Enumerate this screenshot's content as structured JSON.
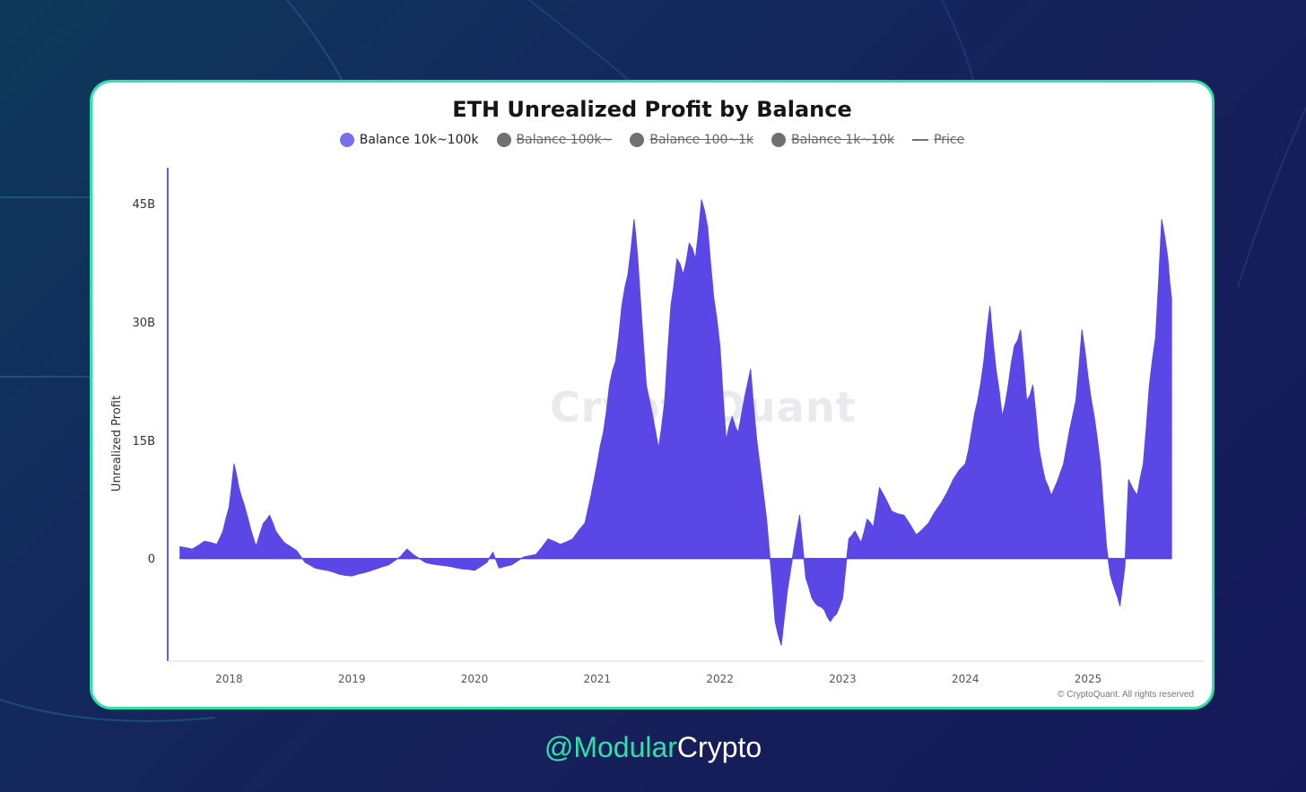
{
  "footer": {
    "handle": "@Modular",
    "brand": "Crypto"
  },
  "watermark": "CryptoQuant",
  "copyright": "© CryptoQuant. All rights reserved",
  "colors": {
    "accent": "#2fe0a8",
    "series": "#5b47e6",
    "disabled": "#6f6f74"
  },
  "chart_data": {
    "type": "area",
    "title": "ETH Unrealized Profit by Balance",
    "ylabel": "Unrealized Profit",
    "xlabel": "",
    "legend_position": "top-center",
    "grid": false,
    "legend": [
      {
        "label": "Balance 10k~100k",
        "marker": "dot",
        "color": "#7b6cf0",
        "active": true
      },
      {
        "label": "Balance 100k~",
        "marker": "dot",
        "color": "#6f6f74",
        "active": false
      },
      {
        "label": "Balance 100~1k",
        "marker": "dot",
        "color": "#6f6f74",
        "active": false
      },
      {
        "label": "Balance 1k~10k",
        "marker": "dot",
        "color": "#6f6f74",
        "active": false
      },
      {
        "label": "Price",
        "marker": "line",
        "color": "#6f6f74",
        "active": false
      }
    ],
    "x_ticks": [
      "2018",
      "2019",
      "2020",
      "2021",
      "2022",
      "2023",
      "2024",
      "2025"
    ],
    "y_ticks": [
      {
        "value": 45,
        "label": "45B"
      },
      {
        "value": 30,
        "label": "30B"
      },
      {
        "value": 15,
        "label": "15B"
      },
      {
        "value": 0,
        "label": "0"
      }
    ],
    "xlim": [
      2017.5,
      2025.95
    ],
    "ylim": [
      -13,
      49
    ],
    "series": [
      {
        "name": "Balance 10k~100k",
        "unit": "B USD",
        "points": [
          [
            2017.6,
            1.5
          ],
          [
            2017.7,
            1.2
          ],
          [
            2017.8,
            2.2
          ],
          [
            2017.9,
            1.8
          ],
          [
            2017.95,
            3.5
          ],
          [
            2018.0,
            6.5
          ],
          [
            2018.04,
            12.0
          ],
          [
            2018.08,
            9.0
          ],
          [
            2018.12,
            7.0
          ],
          [
            2018.18,
            3.5
          ],
          [
            2018.22,
            1.5
          ],
          [
            2018.28,
            4.5
          ],
          [
            2018.33,
            5.5
          ],
          [
            2018.38,
            3.5
          ],
          [
            2018.45,
            2.0
          ],
          [
            2018.55,
            1.0
          ],
          [
            2018.62,
            -0.5
          ],
          [
            2018.7,
            -1.2
          ],
          [
            2018.8,
            -1.5
          ],
          [
            2018.9,
            -2.0
          ],
          [
            2019.0,
            -2.2
          ],
          [
            2019.1,
            -1.8
          ],
          [
            2019.2,
            -1.3
          ],
          [
            2019.3,
            -0.8
          ],
          [
            2019.4,
            0.3
          ],
          [
            2019.45,
            1.2
          ],
          [
            2019.5,
            0.5
          ],
          [
            2019.6,
            -0.5
          ],
          [
            2019.7,
            -0.8
          ],
          [
            2019.8,
            -1.0
          ],
          [
            2019.9,
            -1.3
          ],
          [
            2020.0,
            -1.5
          ],
          [
            2020.1,
            -0.5
          ],
          [
            2020.15,
            0.8
          ],
          [
            2020.2,
            -1.2
          ],
          [
            2020.3,
            -0.8
          ],
          [
            2020.4,
            0.2
          ],
          [
            2020.5,
            0.5
          ],
          [
            2020.6,
            2.5
          ],
          [
            2020.7,
            1.8
          ],
          [
            2020.8,
            2.5
          ],
          [
            2020.9,
            4.5
          ],
          [
            2021.0,
            12.0
          ],
          [
            2021.05,
            16.0
          ],
          [
            2021.1,
            22.0
          ],
          [
            2021.15,
            25.0
          ],
          [
            2021.2,
            32.0
          ],
          [
            2021.25,
            36.0
          ],
          [
            2021.3,
            43.0
          ],
          [
            2021.33,
            38.0
          ],
          [
            2021.4,
            22.0
          ],
          [
            2021.5,
            14.0
          ],
          [
            2021.55,
            20.0
          ],
          [
            2021.6,
            32.0
          ],
          [
            2021.65,
            38.0
          ],
          [
            2021.7,
            36.0
          ],
          [
            2021.75,
            40.0
          ],
          [
            2021.8,
            38.0
          ],
          [
            2021.85,
            45.5
          ],
          [
            2021.9,
            42.0
          ],
          [
            2021.95,
            33.0
          ],
          [
            2022.0,
            27.0
          ],
          [
            2022.05,
            15.0
          ],
          [
            2022.1,
            18.0
          ],
          [
            2022.15,
            16.0
          ],
          [
            2022.25,
            24.0
          ],
          [
            2022.3,
            15.0
          ],
          [
            2022.38,
            5.0
          ],
          [
            2022.42,
            -2.0
          ],
          [
            2022.45,
            -8.0
          ],
          [
            2022.5,
            -11.0
          ],
          [
            2022.55,
            -4.0
          ],
          [
            2022.6,
            1.0
          ],
          [
            2022.65,
            5.5
          ],
          [
            2022.7,
            -2.5
          ],
          [
            2022.75,
            -5.0
          ],
          [
            2022.8,
            -6.0
          ],
          [
            2022.85,
            -6.5
          ],
          [
            2022.9,
            -8.0
          ],
          [
            2022.95,
            -7.0
          ],
          [
            2023.0,
            -5.0
          ],
          [
            2023.05,
            2.5
          ],
          [
            2023.1,
            3.5
          ],
          [
            2023.15,
            2.0
          ],
          [
            2023.2,
            5.0
          ],
          [
            2023.25,
            4.0
          ],
          [
            2023.3,
            9.0
          ],
          [
            2023.4,
            6.0
          ],
          [
            2023.5,
            5.5
          ],
          [
            2023.6,
            3.0
          ],
          [
            2023.7,
            4.5
          ],
          [
            2023.8,
            7.0
          ],
          [
            2023.9,
            10.0
          ],
          [
            2024.0,
            12.0
          ],
          [
            2024.05,
            16.0
          ],
          [
            2024.1,
            20.0
          ],
          [
            2024.15,
            25.0
          ],
          [
            2024.2,
            32.0
          ],
          [
            2024.25,
            24.0
          ],
          [
            2024.3,
            18.0
          ],
          [
            2024.35,
            22.0
          ],
          [
            2024.4,
            27.0
          ],
          [
            2024.45,
            29.0
          ],
          [
            2024.5,
            20.0
          ],
          [
            2024.55,
            22.0
          ],
          [
            2024.6,
            14.0
          ],
          [
            2024.65,
            10.0
          ],
          [
            2024.7,
            8.0
          ],
          [
            2024.8,
            12.0
          ],
          [
            2024.9,
            20.0
          ],
          [
            2024.95,
            29.0
          ],
          [
            2025.0,
            23.0
          ],
          [
            2025.05,
            18.0
          ],
          [
            2025.1,
            12.0
          ],
          [
            2025.15,
            1.5
          ],
          [
            2025.18,
            -2.0
          ],
          [
            2025.22,
            -4.0
          ],
          [
            2025.26,
            -6.0
          ],
          [
            2025.3,
            -1.0
          ],
          [
            2025.33,
            10.0
          ],
          [
            2025.4,
            8.0
          ],
          [
            2025.45,
            12.0
          ],
          [
            2025.5,
            22.0
          ],
          [
            2025.55,
            28.0
          ],
          [
            2025.6,
            43.0
          ],
          [
            2025.65,
            38.0
          ],
          [
            2025.68,
            33.0
          ]
        ]
      }
    ]
  }
}
